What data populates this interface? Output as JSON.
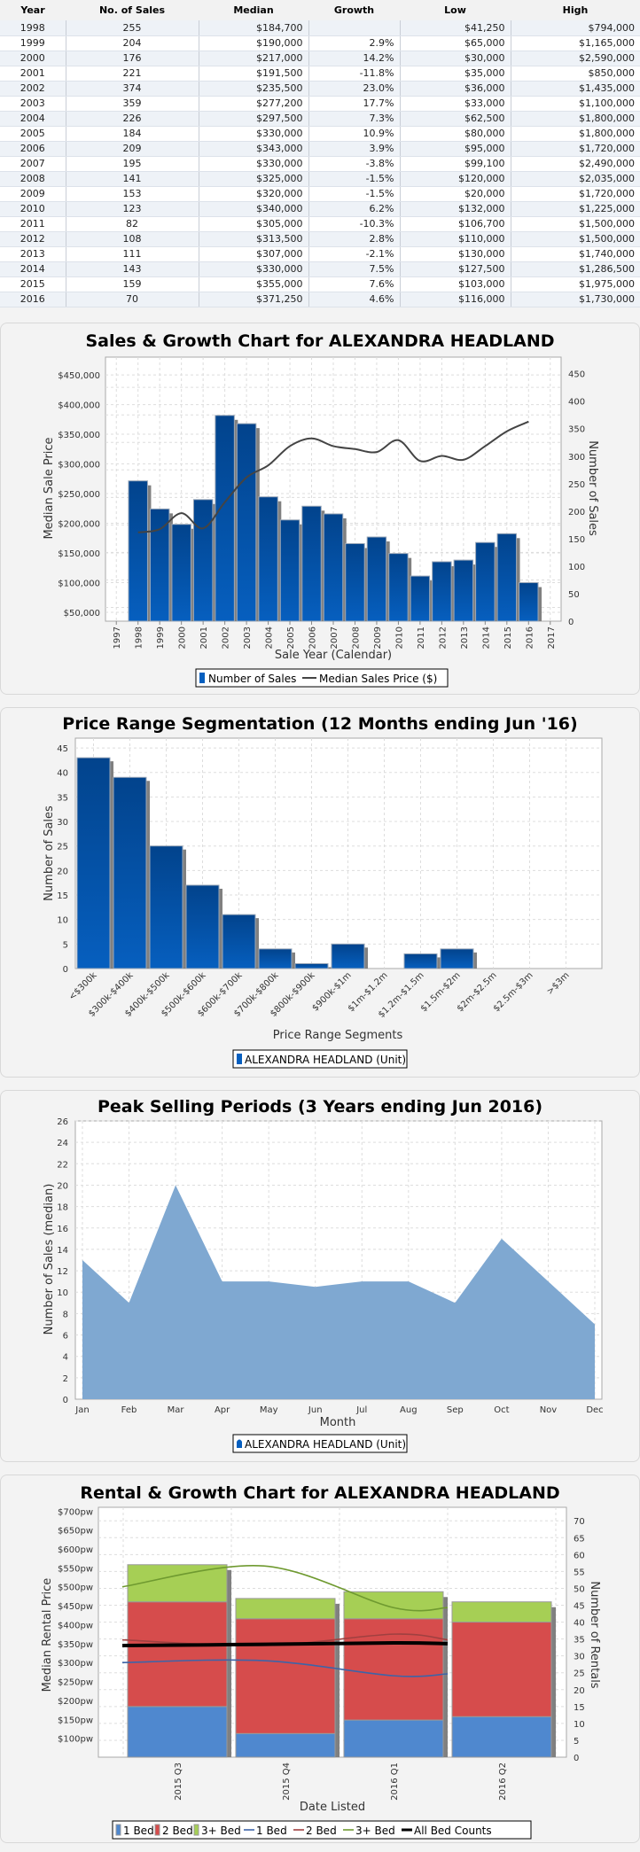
{
  "table": {
    "headers": [
      "Year",
      "No. of Sales",
      "Median",
      "Growth",
      "Low",
      "High"
    ],
    "rows": [
      {
        "year": "1998",
        "sales": "255",
        "median": "$184,700",
        "growth": "",
        "low": "$41,250",
        "high": "$794,000"
      },
      {
        "year": "1999",
        "sales": "204",
        "median": "$190,000",
        "growth": "2.9%",
        "low": "$65,000",
        "high": "$1,165,000"
      },
      {
        "year": "2000",
        "sales": "176",
        "median": "$217,000",
        "growth": "14.2%",
        "low": "$30,000",
        "high": "$2,590,000"
      },
      {
        "year": "2001",
        "sales": "221",
        "median": "$191,500",
        "growth": "-11.8%",
        "low": "$35,000",
        "high": "$850,000"
      },
      {
        "year": "2002",
        "sales": "374",
        "median": "$235,500",
        "growth": "23.0%",
        "low": "$36,000",
        "high": "$1,435,000"
      },
      {
        "year": "2003",
        "sales": "359",
        "median": "$277,200",
        "growth": "17.7%",
        "low": "$33,000",
        "high": "$1,100,000"
      },
      {
        "year": "2004",
        "sales": "226",
        "median": "$297,500",
        "growth": "7.3%",
        "low": "$62,500",
        "high": "$1,800,000"
      },
      {
        "year": "2005",
        "sales": "184",
        "median": "$330,000",
        "growth": "10.9%",
        "low": "$80,000",
        "high": "$1,800,000"
      },
      {
        "year": "2006",
        "sales": "209",
        "median": "$343,000",
        "growth": "3.9%",
        "low": "$95,000",
        "high": "$1,720,000"
      },
      {
        "year": "2007",
        "sales": "195",
        "median": "$330,000",
        "growth": "-3.8%",
        "low": "$99,100",
        "high": "$2,490,000"
      },
      {
        "year": "2008",
        "sales": "141",
        "median": "$325,000",
        "growth": "-1.5%",
        "low": "$120,000",
        "high": "$2,035,000"
      },
      {
        "year": "2009",
        "sales": "153",
        "median": "$320,000",
        "growth": "-1.5%",
        "low": "$20,000",
        "high": "$1,720,000"
      },
      {
        "year": "2010",
        "sales": "123",
        "median": "$340,000",
        "growth": "6.2%",
        "low": "$132,000",
        "high": "$1,225,000"
      },
      {
        "year": "2011",
        "sales": "82",
        "median": "$305,000",
        "growth": "-10.3%",
        "low": "$106,700",
        "high": "$1,500,000"
      },
      {
        "year": "2012",
        "sales": "108",
        "median": "$313,500",
        "growth": "2.8%",
        "low": "$110,000",
        "high": "$1,500,000"
      },
      {
        "year": "2013",
        "sales": "111",
        "median": "$307,000",
        "growth": "-2.1%",
        "low": "$130,000",
        "high": "$1,740,000"
      },
      {
        "year": "2014",
        "sales": "143",
        "median": "$330,000",
        "growth": "7.5%",
        "low": "$127,500",
        "high": "$1,286,500"
      },
      {
        "year": "2015",
        "sales": "159",
        "median": "$355,000",
        "growth": "7.6%",
        "low": "$103,000",
        "high": "$1,975,000"
      },
      {
        "year": "2016",
        "sales": "70",
        "median": "$371,250",
        "growth": "4.6%",
        "low": "$116,000",
        "high": "$1,730,000"
      }
    ]
  },
  "colors": {
    "growth_positive": "#5cb85c",
    "growth_negative": "#e8302c",
    "year_link": "#1a9a6c",
    "bar_blue_top": "#02438c",
    "bar_blue_bottom": "#065fbf",
    "bar_shadow": "#808080",
    "line_dark": "#444444",
    "area_blue": "#7fa8d1",
    "bed1": "#4f88cf",
    "bed2": "#d64c4c",
    "bed3": "#a6cf55",
    "line_bed1": "#3d64a8",
    "line_bed2": "#a04040",
    "line_bed3": "#6f9a30"
  },
  "chart_data": [
    {
      "type": "bar",
      "title": "Sales & Growth Chart for ALEXANDRA HEADLAND",
      "xlabel": "Sale Year (Calendar)",
      "ylabel": "Median Sale Price",
      "y2label": "Number of Sales",
      "x_ticks": [
        "1997",
        "1998",
        "1999",
        "2000",
        "2001",
        "2002",
        "2003",
        "2004",
        "2005",
        "2006",
        "2007",
        "2008",
        "2009",
        "2010",
        "2011",
        "2012",
        "2013",
        "2014",
        "2015",
        "2016",
        "2017"
      ],
      "y_ticks": [
        "$50,000",
        "$100,000",
        "$150,000",
        "$200,000",
        "$250,000",
        "$300,000",
        "$350,000",
        "$400,000",
        "$450,000"
      ],
      "y2_ticks": [
        "0",
        "50",
        "100",
        "150",
        "200",
        "250",
        "300",
        "350",
        "400",
        "450"
      ],
      "ylim": [
        35000,
        480000
      ],
      "y2lim": [
        0,
        480
      ],
      "grid": true,
      "legend": [
        "Number of Sales",
        "Median Sales Price ($)"
      ],
      "legend_position": "bottom",
      "categories": [
        "1998",
        "1999",
        "2000",
        "2001",
        "2002",
        "2003",
        "2004",
        "2005",
        "2006",
        "2007",
        "2008",
        "2009",
        "2010",
        "2011",
        "2012",
        "2013",
        "2014",
        "2015",
        "2016"
      ],
      "series": [
        {
          "name": "Number of Sales",
          "type": "bar",
          "axis": "right",
          "values": [
            255,
            204,
            176,
            221,
            374,
            359,
            226,
            184,
            209,
            195,
            141,
            153,
            123,
            82,
            108,
            111,
            143,
            159,
            70
          ]
        },
        {
          "name": "Median Sales Price ($)",
          "type": "line",
          "axis": "left",
          "values": [
            184700,
            190000,
            217000,
            191500,
            235500,
            277200,
            297500,
            330000,
            343000,
            330000,
            325000,
            320000,
            340000,
            305000,
            313500,
            307000,
            330000,
            355000,
            371250
          ]
        }
      ]
    },
    {
      "type": "bar",
      "title": "Price Range Segmentation (12 Months ending Jun '16)",
      "xlabel": "Price Range Segments",
      "ylabel": "Number of Sales",
      "categories": [
        "<$300k",
        "$300k-$400k",
        "$400k-$500k",
        "$500k-$600k",
        "$600k-$700k",
        "$700k-$800k",
        "$800k-$900k",
        "$900k-$1m",
        "$1m-$1.2m",
        "$1.2m-$1.5m",
        "$1.5m-$2m",
        "$2m-$2.5m",
        "$2.5m-$3m",
        ">$3m"
      ],
      "values": [
        43,
        39,
        25,
        17,
        11,
        4,
        1,
        5,
        0,
        3,
        4,
        0,
        0,
        0
      ],
      "y_ticks": [
        "0",
        "5",
        "10",
        "15",
        "20",
        "25",
        "30",
        "35",
        "40",
        "45"
      ],
      "ylim": [
        0,
        47
      ],
      "grid": true,
      "legend": [
        "ALEXANDRA HEADLAND (Unit)"
      ],
      "legend_position": "bottom"
    },
    {
      "type": "area",
      "title": "Peak Selling Periods (3 Years ending Jun 2016)",
      "xlabel": "Month",
      "ylabel": "Number of Sales (median)",
      "categories": [
        "Jan",
        "Feb",
        "Mar",
        "Apr",
        "May",
        "Jun",
        "Jul",
        "Aug",
        "Sep",
        "Oct",
        "Nov",
        "Dec"
      ],
      "values": [
        13,
        9,
        20,
        11,
        11,
        10.5,
        11,
        11,
        9,
        15,
        11,
        7
      ],
      "y_ticks": [
        "0",
        "2",
        "4",
        "6",
        "8",
        "10",
        "12",
        "14",
        "16",
        "18",
        "20",
        "22",
        "24",
        "26"
      ],
      "ylim": [
        0,
        26
      ],
      "grid": true,
      "legend": [
        "ALEXANDRA HEADLAND (Unit)"
      ],
      "legend_position": "bottom"
    },
    {
      "type": "bar",
      "title": "Rental & Growth Chart for ALEXANDRA HEADLAND",
      "xlabel": "Date Listed",
      "ylabel": "Median Rental Price",
      "y2label": "Number of Rentals",
      "categories": [
        "2015 Q3",
        "2015 Q4",
        "2016 Q1",
        "2016 Q2"
      ],
      "y_ticks": [
        "$100pw",
        "$150pw",
        "$200pw",
        "$250pw",
        "$300pw",
        "$350pw",
        "$400pw",
        "$450pw",
        "$500pw",
        "$550pw",
        "$600pw",
        "$650pw",
        "$700pw"
      ],
      "y2_ticks": [
        "0",
        "5",
        "10",
        "15",
        "20",
        "25",
        "30",
        "35",
        "40",
        "45",
        "50",
        "55",
        "60",
        "65",
        "70"
      ],
      "ylim": [
        50,
        710
      ],
      "y2lim": [
        0,
        74
      ],
      "grid": true,
      "legend": [
        "1 Bed",
        "2 Bed",
        "3+ Bed",
        "1 Bed",
        "2 Bed",
        "3+ Bed",
        "All Bed Counts"
      ],
      "legend_position": "bottom",
      "stacked_series": [
        {
          "name": "1 Bed",
          "axis": "right",
          "values": [
            15,
            7,
            11,
            12
          ]
        },
        {
          "name": "2 Bed",
          "axis": "right",
          "values": [
            31,
            34,
            30,
            28
          ]
        },
        {
          "name": "3+ Bed",
          "axis": "right",
          "values": [
            11,
            6,
            8,
            6
          ]
        }
      ],
      "line_series": [
        {
          "name": "1 Bed",
          "axis": "left",
          "values": [
            300,
            305,
            265,
            270
          ]
        },
        {
          "name": "2 Bed",
          "axis": "left",
          "values": [
            360,
            345,
            375,
            360
          ]
        },
        {
          "name": "3+ Bed",
          "axis": "left",
          "values": [
            500,
            555,
            445,
            445
          ]
        },
        {
          "name": "All Bed Counts",
          "axis": "left",
          "values": [
            345,
            348,
            352,
            350
          ]
        }
      ]
    }
  ]
}
